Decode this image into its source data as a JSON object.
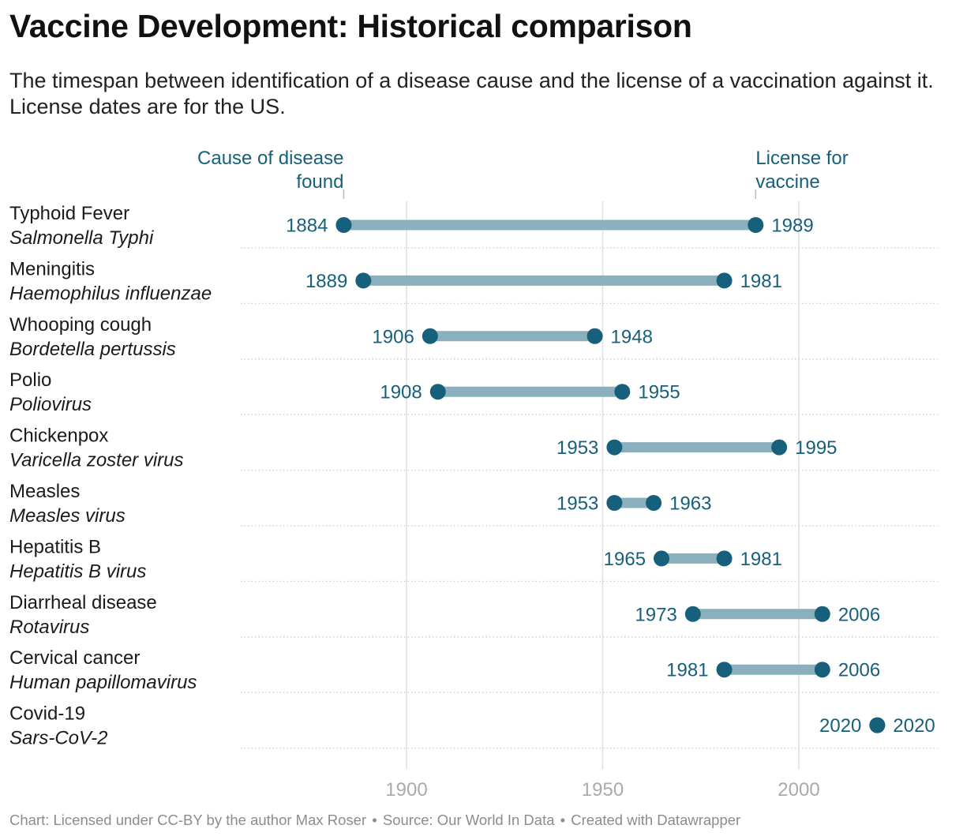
{
  "title": "Vaccine Development: Historical comparison",
  "subtitle": "The timespan between identification of a disease cause and the license of a vaccination against it. License dates are for the US.",
  "legend": {
    "start_label": [
      "Cause of disease",
      "found"
    ],
    "end_label": [
      "License for",
      "vaccine"
    ]
  },
  "colors": {
    "dot": "#17607c",
    "bar": "#8aafbd",
    "label": "#17607c",
    "grid": "#e1e1e1",
    "row_rule": "#cccccc",
    "tick": "#aaaaaa",
    "legend_tick": "#bbbbbb"
  },
  "chart_data": {
    "type": "dot-range",
    "title": "Vaccine Development: Historical comparison",
    "x_ticks": [
      1900,
      1950,
      2000
    ],
    "xlim": [
      1863,
      2036
    ],
    "legend_anchor_row": 0,
    "rows": [
      {
        "disease": "Typhoid Fever",
        "pathogen": "Salmonella Typhi",
        "start": 1884,
        "end": 1989
      },
      {
        "disease": "Meningitis",
        "pathogen": "Haemophilus influenzae",
        "start": 1889,
        "end": 1981
      },
      {
        "disease": "Whooping cough",
        "pathogen": "Bordetella pertussis",
        "start": 1906,
        "end": 1948
      },
      {
        "disease": "Polio",
        "pathogen": "Poliovirus",
        "start": 1908,
        "end": 1955
      },
      {
        "disease": "Chickenpox",
        "pathogen": "Varicella zoster virus",
        "start": 1953,
        "end": 1995
      },
      {
        "disease": "Measles",
        "pathogen": "Measles virus",
        "start": 1953,
        "end": 1963
      },
      {
        "disease": "Hepatitis B",
        "pathogen": "Hepatitis B virus",
        "start": 1965,
        "end": 1981
      },
      {
        "disease": "Diarrheal disease",
        "pathogen": "Rotavirus",
        "start": 1973,
        "end": 2006
      },
      {
        "disease": "Cervical cancer",
        "pathogen": "Human papillomavirus",
        "start": 1981,
        "end": 2006
      },
      {
        "disease": "Covid-19",
        "pathogen": "Sars-CoV-2",
        "start": 2020,
        "end": 2020
      }
    ]
  },
  "footer": {
    "credit": "Chart: Licensed under CC-BY by the author Max Roser",
    "separator": "•",
    "source": "Source: Our World In Data",
    "tool": "Created with Datawrapper"
  }
}
